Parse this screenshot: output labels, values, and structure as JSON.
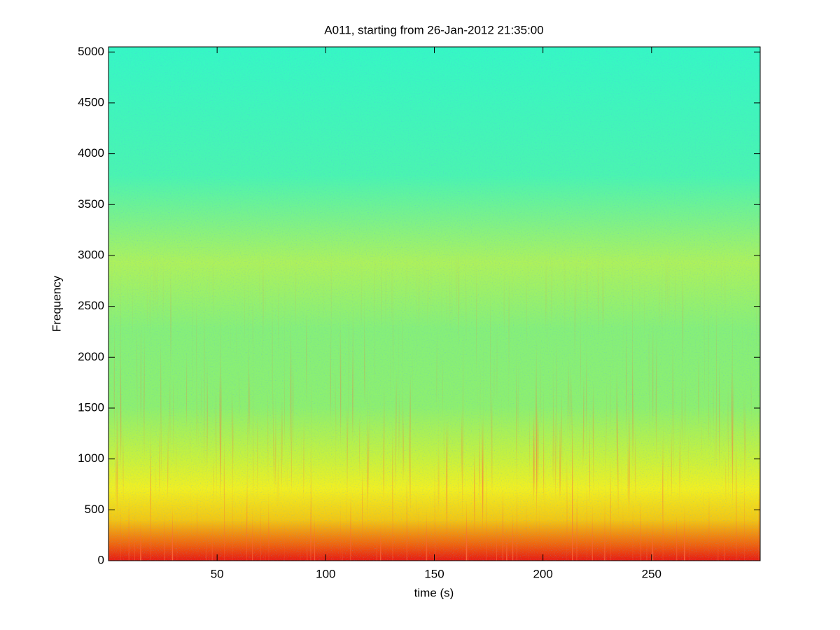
{
  "chart_data": {
    "type": "spectrogram",
    "title": "A011, starting from 26-Jan-2012 21:35:00",
    "x_label": "time (s)",
    "y_label": "Frequency",
    "xlim": [
      0,
      300
    ],
    "ylim": [
      0,
      5050
    ],
    "xticks": [
      50,
      100,
      150,
      200,
      250
    ],
    "yticks": [
      0,
      500,
      1000,
      1500,
      2000,
      2500,
      3000,
      3500,
      4000,
      4500,
      5000
    ],
    "colormap": "jet"
  }
}
